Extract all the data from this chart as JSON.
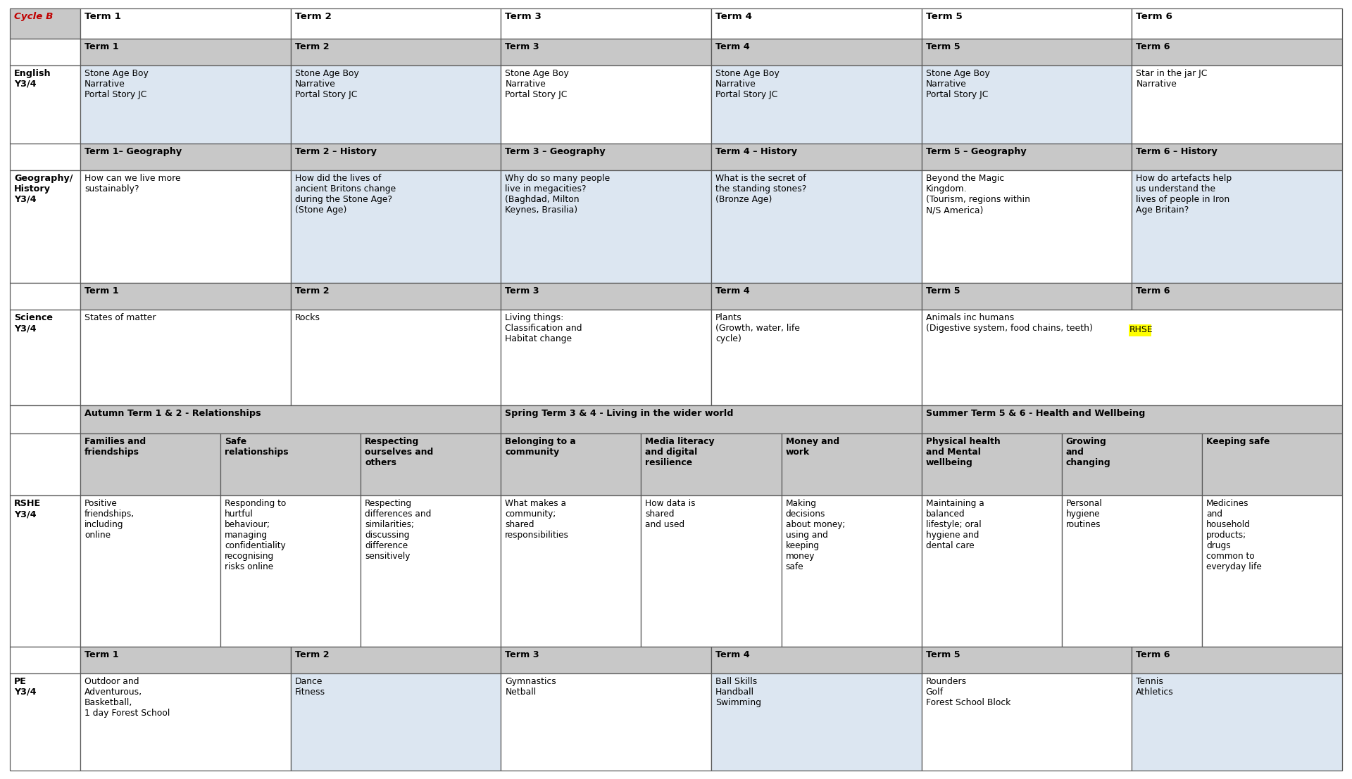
{
  "bg_color": "#ffffff",
  "border_color": "#5a5a5a",
  "gray_bg": "#c8c8c8",
  "light_blue_bg": "#dce6f1",
  "white_bg": "#ffffff",
  "cycle_b_color": "#c00000",
  "highlight_yellow": "#ffff00",
  "header_row": [
    "Cycle B",
    "Term 1",
    "Term 2",
    "Term 3",
    "Term 4",
    "Term 5",
    "Term 6"
  ],
  "english_headers": [
    "Term 1",
    "Term 2",
    "Term 3",
    "Term 4",
    "Term 5",
    "Term 6"
  ],
  "english_cells": [
    "Stone Age Boy\nNarrative\nPortal Story JC",
    "Stone Age Boy\nNarrative\nPortal Story JC",
    "Stone Age Boy\nNarrative\nPortal Story JC",
    "Stone Age Boy\nNarrative\nPortal Story JC",
    "Stone Age Boy\nNarrative\nPortal Story JC",
    "Star in the jar JC\nNarrative"
  ],
  "english_cell_colors": [
    "#dce6f1",
    "#dce6f1",
    "#ffffff",
    "#dce6f1",
    "#dce6f1",
    "#ffffff"
  ],
  "geog_headers": [
    "Term 1– Geography",
    "Term 2 – History",
    "Term 3 – Geography",
    "Term 4 – History",
    "Term 5 – Geography",
    "Term 6 – History"
  ],
  "geog_cells": [
    "How can we live more\nsustainably?",
    "How did the lives of\nancient Britons change\nduring the Stone Age?\n(Stone Age)",
    "Why do so many people\nlive in megacities?\n(Baghdad, Milton\nKeynes, Brasilia)",
    "What is the secret of\nthe standing stones?\n(Bronze Age)",
    "Beyond the Magic\nKingdom.\n(Tourism, regions within\nN/S America)",
    "How do artefacts help\nus understand the\nlives of people in Iron\nAge Britain?"
  ],
  "geog_cell_colors": [
    "#ffffff",
    "#dce6f1",
    "#dce6f1",
    "#dce6f1",
    "#ffffff",
    "#dce6f1"
  ],
  "sci_headers": [
    "Term 1",
    "Term 2",
    "Term 3",
    "Term 4",
    "Term 5",
    "Term 6"
  ],
  "sci_cells": [
    "States of matter",
    "Rocks",
    "Living things:\nClassification and\nHabitat change",
    "Plants\n(Growth, water, life\ncycle)",
    "Animals inc humans\n(Digestive system, food chains, teeth) RHSE",
    ""
  ],
  "sci_cell_colors": [
    "#ffffff",
    "#ffffff",
    "#ffffff",
    "#ffffff",
    "#ffffff",
    "#ffffff"
  ],
  "rshe_autumn_header": "Autumn Term 1 & 2 - Relationships",
  "rshe_spring_header": "Spring Term 3 & 4 - Living in the wider world",
  "rshe_summer_header": "Summer Term 5 & 6 - Health and Wellbeing",
  "rshe_sub_headers": [
    "Families and\nfriendships",
    "Safe\nrelationships",
    "Respecting\nourselves and\nothers",
    "Belonging to a\ncommunity",
    "Media literacy\nand digital\nresilience",
    "Money and\nwork",
    "Physical health\nand Mental\nwellbeing",
    "Growing\nand\nchanging",
    "Keeping safe"
  ],
  "rshe_cells": [
    "Positive\nfriendships,\nincluding\nonline",
    "Responding to\nhurtful\nbehaviour;\nmanaging\nconfidentiality\nrecognising\nrisks online",
    "Respecting\ndifferences and\nsimilarities;\ndiscussing\ndifference\nsensitively",
    "What makes a\ncommunity;\nshared\nresponsibilities",
    "How data is\nshared\nand used",
    "Making\ndecisions\nabout money;\nusing and\nkeeping\nmoney\nsafe",
    "Maintaining a\nbalanced\nlifestyle; oral\nhygiene and\ndental care",
    "Personal\nhygiene\nroutines",
    "Medicines\nand\nhousehold\nproducts;\ndrugs\ncommon to\neveryday life"
  ],
  "pe_headers": [
    "Term 1",
    "Term 2",
    "Term 3",
    "Term 4",
    "Term 5",
    "Term 6"
  ],
  "pe_cells": [
    "Outdoor and\nAdventurous,\nBasketball,\n1 day Forest School",
    "Dance\nFitness",
    "Gymnastics\nNetball",
    "Ball Skills\nHandball\nSwimming",
    "Rounders\nGolf\nForest School Block",
    "Tennis\nAthletics"
  ],
  "pe_cell_colors": [
    "#ffffff",
    "#dce6f1",
    "#ffffff",
    "#dce6f1",
    "#ffffff",
    "#dce6f1"
  ]
}
